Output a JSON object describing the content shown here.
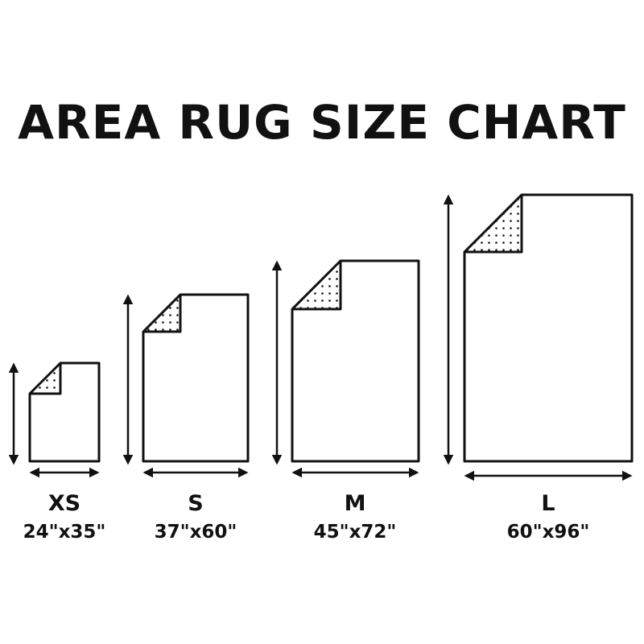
{
  "title": "AREA RUG SIZE CHART",
  "line_color": "#111111",
  "rugs": [
    {
      "name": "XS",
      "dimensions": "24\"x35\""
    },
    {
      "name": "S",
      "dimensions": "37\"x60\""
    },
    {
      "name": "M",
      "dimensions": "45\"x72\""
    },
    {
      "name": "L",
      "dimensions": "60\"x96\""
    }
  ]
}
